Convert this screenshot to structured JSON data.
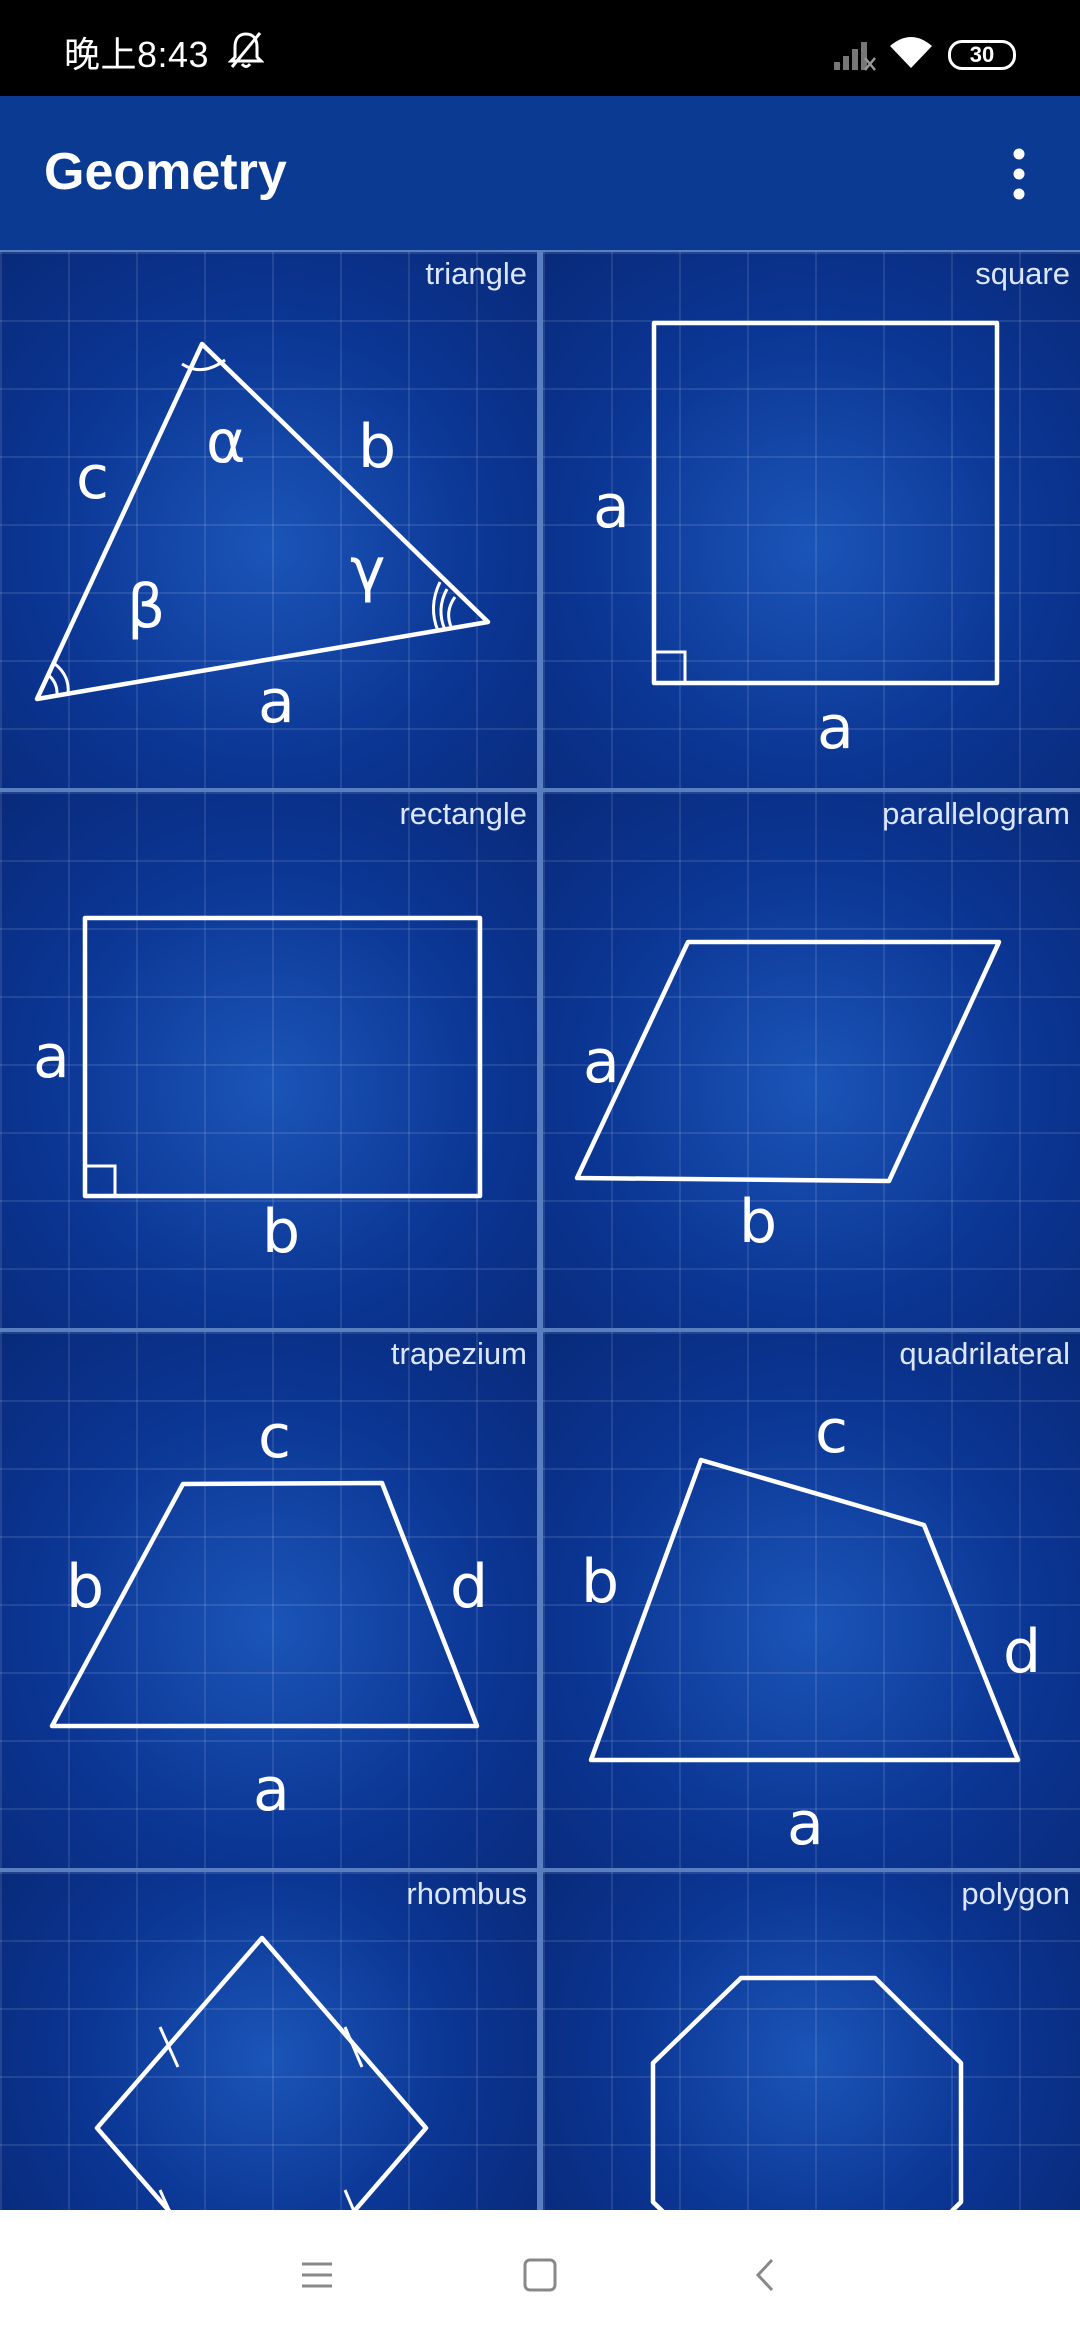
{
  "status_bar": {
    "time": "晚上8:43",
    "battery": "30",
    "icons": [
      "bell-off-icon",
      "signal-icon",
      "wifi-icon",
      "battery-icon"
    ]
  },
  "app_bar": {
    "title": "Geometry",
    "menu_icon": "more-vert-icon"
  },
  "shapes": [
    {
      "id": "triangle",
      "label": "triangle",
      "letters": {
        "a": "a",
        "b": "b",
        "c": "c",
        "alpha": "α",
        "beta": "β",
        "gamma": "γ"
      }
    },
    {
      "id": "square",
      "label": "square",
      "letters": {
        "side_left": "a",
        "side_bottom": "a"
      }
    },
    {
      "id": "rectangle",
      "label": "rectangle",
      "letters": {
        "side_left": "a",
        "side_bottom": "b"
      }
    },
    {
      "id": "parallelogram",
      "label": "parallelogram",
      "letters": {
        "side_left": "a",
        "side_bottom": "b"
      }
    },
    {
      "id": "trapezium",
      "label": "trapezium",
      "letters": {
        "top": "c",
        "left": "b",
        "right": "d",
        "bottom": "a"
      }
    },
    {
      "id": "quadrilateral",
      "label": "quadrilateral",
      "letters": {
        "top": "c",
        "left": "b",
        "right": "d",
        "bottom": "a"
      }
    },
    {
      "id": "rhombus",
      "label": "rhombus",
      "letters": {}
    },
    {
      "id": "polygon",
      "label": "polygon",
      "letters": {}
    }
  ],
  "nav_bar": {
    "buttons": [
      "menu-icon",
      "home-icon",
      "back-icon"
    ]
  },
  "colors": {
    "status_bar": "#000000",
    "app_bar": "#0b3a93",
    "tile_background": "#0b3694",
    "line": "#ffffff"
  }
}
